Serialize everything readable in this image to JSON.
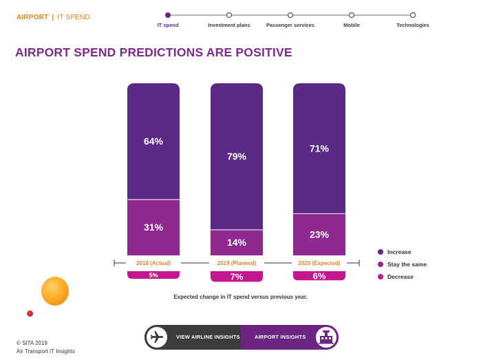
{
  "header": {
    "section": "AIRPORT",
    "separator": "|",
    "subsection": "IT SPEND"
  },
  "progress": {
    "steps": [
      {
        "label": "IT spend",
        "active": true
      },
      {
        "label": "Investment plans",
        "active": false
      },
      {
        "label": "Passenger services",
        "active": false
      },
      {
        "label": "Mobile",
        "active": false
      },
      {
        "label": "Technologies",
        "active": false
      }
    ]
  },
  "title": "AIRPORT SPEND PREDICTIONS ARE POSITIVE",
  "chart_data": {
    "type": "bar",
    "stacked": true,
    "categories": [
      "2018 (Actual)",
      "2019 (Planned)",
      "2020 (Expected)"
    ],
    "series": [
      {
        "name": "Increase",
        "values": [
          64,
          79,
          71
        ],
        "labels": [
          "64%",
          "79%",
          "71%"
        ],
        "color": "#5b2a86"
      },
      {
        "name": "Stay the same",
        "values": [
          31,
          14,
          23
        ],
        "labels": [
          "31%",
          "14%",
          "23%"
        ],
        "color": "#8e2a8f"
      },
      {
        "name": "Decrease",
        "values": [
          5,
          7,
          6
        ],
        "labels": [
          "5%",
          "7%",
          "6%"
        ],
        "color": "#c4168e"
      }
    ],
    "ylim": [
      0,
      100
    ],
    "legend": "right",
    "grid": false,
    "caption": "Expected change in IT spend versus previous year.",
    "colors": {
      "category_label": "#e8821e",
      "axis": "#333333"
    }
  },
  "footer": {
    "copyright": "© SITA 2019",
    "source": "Air Transport IT Insights"
  },
  "nav": {
    "airline_label": "VIEW AIRLINE INSIGHTS",
    "airport_label": "AIRPORT INSIGHTS",
    "airline_icon": "airplane-icon",
    "airport_icon": "airport-terminal-icon"
  },
  "colors": {
    "accent_orange": "#e8821e",
    "title_purple": "#7d2a8a",
    "dark_purple": "#5b2a86",
    "nav_dark": "#3c3c3c",
    "nav_purple": "#6b2683"
  }
}
